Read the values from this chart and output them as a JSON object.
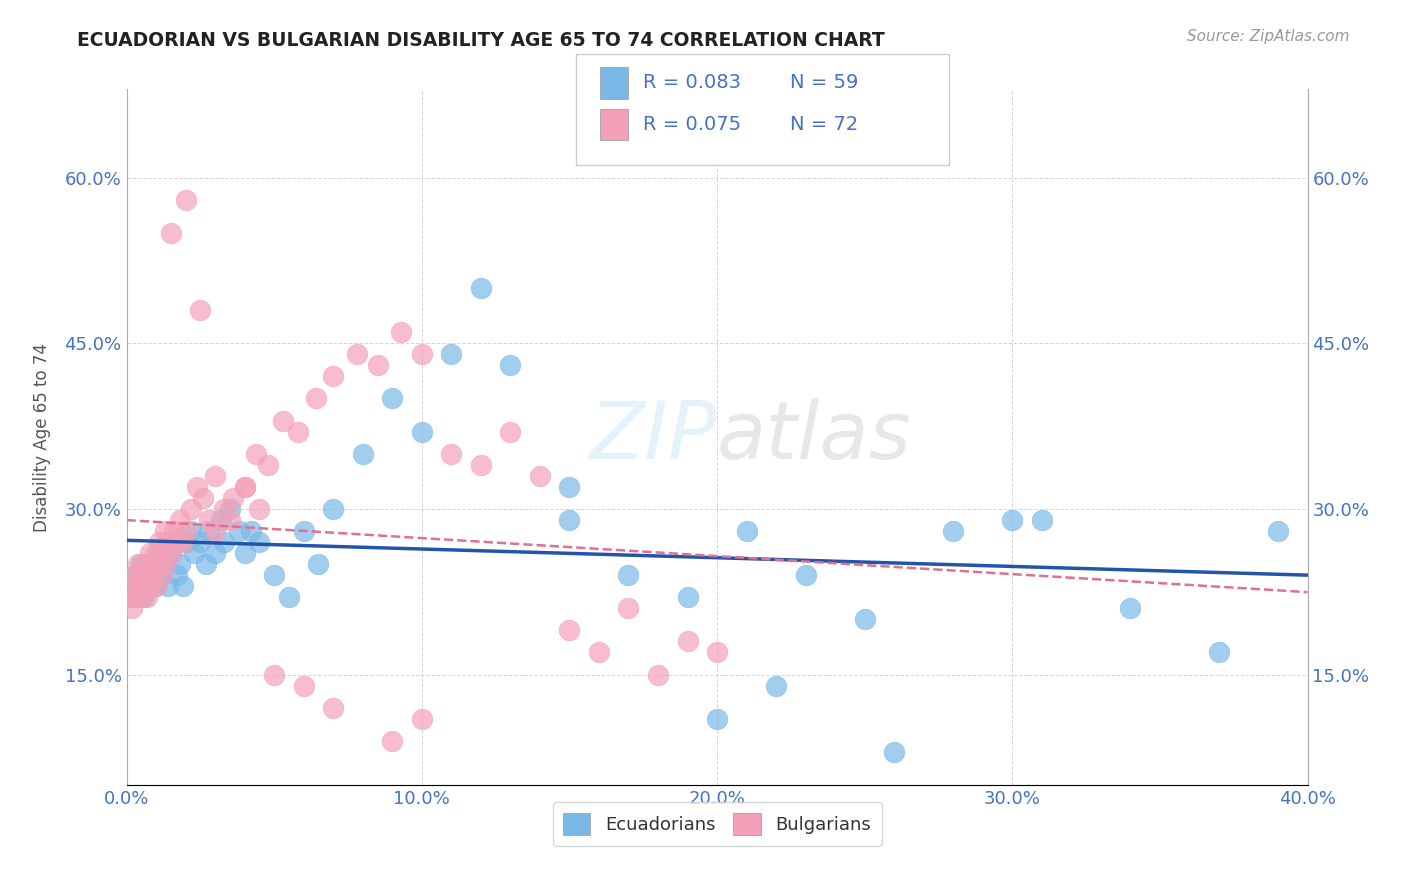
{
  "title": "ECUADORIAN VS BULGARIAN DISABILITY AGE 65 TO 74 CORRELATION CHART",
  "source": "Source: ZipAtlas.com",
  "ylabel": "Disability Age 65 to 74",
  "xlim": [
    0.0,
    0.4
  ],
  "ylim": [
    0.05,
    0.68
  ],
  "xticks": [
    0.0,
    0.1,
    0.2,
    0.3,
    0.4
  ],
  "yticks": [
    0.15,
    0.3,
    0.45,
    0.6
  ],
  "ytick_labels": [
    "15.0%",
    "30.0%",
    "45.0%",
    "60.0%"
  ],
  "xtick_labels": [
    "0.0%",
    "10.0%",
    "20.0%",
    "30.0%",
    "40.0%"
  ],
  "legend_r1": "R = 0.083",
  "legend_n1": "N = 59",
  "legend_r2": "R = 0.075",
  "legend_n2": "N = 72",
  "color_ecuador": "#7ab8e8",
  "color_bulgaria": "#f4a0b8",
  "color_text_blue": "#4472c4",
  "background_color": "#ffffff",
  "grid_color": "#cccccc",
  "ecuador_trendline_color": "#2255aa",
  "bulgaria_trendline_color": "#e07090",
  "ecuadorians_x": [
    0.002,
    0.003,
    0.004,
    0.005,
    0.006,
    0.007,
    0.008,
    0.009,
    0.01,
    0.011,
    0.012,
    0.013,
    0.014,
    0.015,
    0.016,
    0.017,
    0.018,
    0.019,
    0.02,
    0.022,
    0.023,
    0.025,
    0.027,
    0.028,
    0.03,
    0.032,
    0.033,
    0.035,
    0.038,
    0.04,
    0.042,
    0.045,
    0.05,
    0.055,
    0.06,
    0.065,
    0.07,
    0.08,
    0.09,
    0.1,
    0.11,
    0.12,
    0.13,
    0.15,
    0.17,
    0.19,
    0.21,
    0.23,
    0.25,
    0.28,
    0.31,
    0.34,
    0.37,
    0.39,
    0.15,
    0.2,
    0.22,
    0.26,
    0.3
  ],
  "ecuadorians_y": [
    0.22,
    0.24,
    0.23,
    0.25,
    0.22,
    0.23,
    0.25,
    0.24,
    0.23,
    0.26,
    0.24,
    0.25,
    0.23,
    0.26,
    0.27,
    0.24,
    0.25,
    0.23,
    0.27,
    0.28,
    0.26,
    0.27,
    0.25,
    0.28,
    0.26,
    0.29,
    0.27,
    0.3,
    0.28,
    0.26,
    0.28,
    0.27,
    0.24,
    0.22,
    0.28,
    0.25,
    0.3,
    0.35,
    0.4,
    0.37,
    0.44,
    0.5,
    0.43,
    0.32,
    0.24,
    0.22,
    0.28,
    0.24,
    0.2,
    0.28,
    0.29,
    0.21,
    0.17,
    0.28,
    0.29,
    0.11,
    0.14,
    0.08,
    0.29
  ],
  "bulgarians_x": [
    0.001,
    0.002,
    0.002,
    0.003,
    0.003,
    0.004,
    0.004,
    0.005,
    0.005,
    0.006,
    0.006,
    0.007,
    0.007,
    0.008,
    0.008,
    0.009,
    0.009,
    0.01,
    0.01,
    0.011,
    0.011,
    0.012,
    0.012,
    0.013,
    0.013,
    0.014,
    0.015,
    0.016,
    0.017,
    0.018,
    0.019,
    0.02,
    0.022,
    0.024,
    0.026,
    0.028,
    0.03,
    0.033,
    0.036,
    0.04,
    0.044,
    0.048,
    0.053,
    0.058,
    0.064,
    0.07,
    0.078,
    0.085,
    0.093,
    0.1,
    0.11,
    0.12,
    0.13,
    0.14,
    0.15,
    0.16,
    0.17,
    0.18,
    0.19,
    0.2,
    0.015,
    0.02,
    0.025,
    0.03,
    0.035,
    0.04,
    0.045,
    0.05,
    0.06,
    0.07,
    0.09,
    0.1
  ],
  "bulgarians_y": [
    0.22,
    0.21,
    0.23,
    0.22,
    0.24,
    0.23,
    0.25,
    0.22,
    0.24,
    0.23,
    0.25,
    0.22,
    0.24,
    0.26,
    0.23,
    0.25,
    0.24,
    0.23,
    0.26,
    0.25,
    0.27,
    0.24,
    0.26,
    0.28,
    0.25,
    0.27,
    0.26,
    0.28,
    0.27,
    0.29,
    0.27,
    0.28,
    0.3,
    0.32,
    0.31,
    0.29,
    0.28,
    0.3,
    0.31,
    0.32,
    0.35,
    0.34,
    0.38,
    0.37,
    0.4,
    0.42,
    0.44,
    0.43,
    0.46,
    0.44,
    0.35,
    0.34,
    0.37,
    0.33,
    0.19,
    0.17,
    0.21,
    0.15,
    0.18,
    0.17,
    0.55,
    0.58,
    0.48,
    0.33,
    0.29,
    0.32,
    0.3,
    0.15,
    0.14,
    0.12,
    0.09,
    0.11
  ]
}
